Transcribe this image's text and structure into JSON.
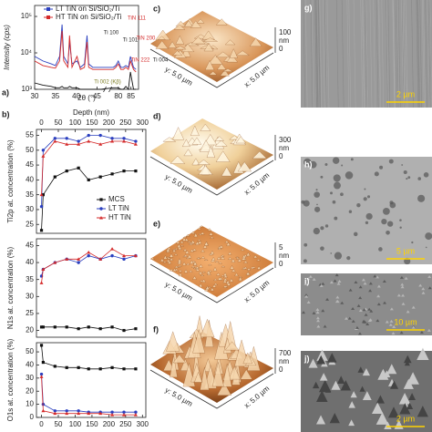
{
  "chart_data": [
    {
      "type": "line",
      "y_label": "Intensity (cps)",
      "x_label": "2θ (°)",
      "log_y": true,
      "x": [
        30,
        32,
        34,
        35,
        36,
        36.6,
        37,
        38,
        38.4,
        39,
        40.2,
        41,
        42,
        42.6,
        43,
        44,
        46,
        78,
        79,
        80,
        81,
        82,
        83,
        84,
        84.8,
        86,
        87
      ],
      "xlim": [
        30,
        88
      ],
      "axis_break": [
        47,
        77
      ],
      "xticks": [
        30,
        35,
        40,
        45,
        80,
        85
      ],
      "ylim": [
        1000,
        200000
      ],
      "yticks": [
        {
          "value": 1000,
          "label": "10³"
        },
        {
          "value": 10000,
          "label": "10⁴"
        },
        {
          "value": 100000,
          "label": "10⁵"
        }
      ],
      "legend": "top",
      "series": [
        {
          "name": "LT TiN on Si/SiO₂/Ti",
          "color": "#2a3fbf",
          "values": [
            8000,
            6000,
            5000,
            4500,
            8000,
            60000,
            8000,
            5000,
            20000,
            5000,
            6000,
            4000,
            5000,
            30000,
            5000,
            4000,
            4000,
            4000,
            4500,
            6000,
            4000,
            4000,
            4500,
            4000,
            8000,
            4000,
            3500
          ]
        },
        {
          "name": "HT TiN on Si/SiO₂/Ti",
          "color": "#d42a2a",
          "values": [
            6000,
            4500,
            4000,
            3800,
            6000,
            40000,
            6000,
            4000,
            30000,
            4000,
            8000,
            3500,
            4000,
            20000,
            4000,
            3500,
            3500,
            3500,
            4000,
            5000,
            3500,
            3500,
            4000,
            3500,
            6000,
            3500,
            3000
          ]
        },
        {
          "color": "#111111",
          "values": [
            1500,
            1300,
            1200,
            1100,
            1100,
            1200,
            1100,
            1100,
            1200,
            1100,
            1100,
            1000,
            1000,
            1000,
            1000,
            1000,
            1000,
            1100,
            1100,
            1100,
            1000,
            1000,
            1200,
            1000,
            3000,
            1000,
            1000
          ]
        }
      ],
      "annotations": [
        "TiN 111",
        "Ti 100",
        "Ti 101",
        "TiN 200",
        "TiN 222",
        "Ti 004",
        "Ti 002 (Kβ)"
      ]
    },
    {
      "type": "line",
      "y_label": "Ti2p at. concentration (%)",
      "x_label": "Depth (nm)",
      "xaxis_position": "top",
      "x": [
        0,
        5,
        40,
        75,
        110,
        140,
        175,
        210,
        245,
        280
      ],
      "xlim": [
        -15,
        310
      ],
      "xticks": [
        0,
        50,
        100,
        150,
        200,
        250,
        300
      ],
      "ylim": [
        22,
        57
      ],
      "yticks": [
        25,
        30,
        35,
        40,
        45,
        50,
        55
      ],
      "legend": "right",
      "series": [
        {
          "name": "MCS",
          "color": "#111111",
          "marker": "square",
          "values": [
            23,
            35,
            41,
            43,
            44,
            40,
            41,
            42,
            43,
            43
          ]
        },
        {
          "name": "LT TiN",
          "color": "#2a3fbf",
          "marker": "circle",
          "values": [
            31,
            50,
            54,
            54,
            53,
            55,
            55,
            54,
            54,
            53
          ]
        },
        {
          "name": "HT TiN",
          "color": "#d42a2a",
          "marker": "triangle",
          "values": [
            35,
            48,
            53,
            52,
            52,
            53,
            52,
            53,
            53,
            52
          ]
        }
      ]
    },
    {
      "type": "line",
      "y_label": "N1s at. concentration (%)",
      "x": [
        0,
        5,
        40,
        75,
        110,
        140,
        175,
        210,
        245,
        280
      ],
      "xlim": [
        -15,
        310
      ],
      "ylim": [
        18,
        47
      ],
      "yticks": [
        20,
        25,
        30,
        35,
        40,
        45
      ],
      "series": [
        {
          "color": "#111111",
          "marker": "square",
          "values": [
            21,
            21,
            21,
            21,
            20.5,
            21,
            20.5,
            21,
            20,
            20.5
          ]
        },
        {
          "color": "#2a3fbf",
          "marker": "circle",
          "values": [
            36,
            38,
            40,
            41,
            40,
            42,
            41,
            42,
            41,
            42
          ]
        },
        {
          "color": "#d42a2a",
          "marker": "triangle",
          "values": [
            34,
            38,
            40,
            41,
            41,
            43,
            41,
            44,
            42,
            42
          ]
        }
      ]
    },
    {
      "type": "line",
      "y_label": "O1s at. concentration (%)",
      "xaxis_position": "bottom",
      "x": [
        0,
        5,
        40,
        75,
        110,
        140,
        175,
        210,
        245,
        280
      ],
      "xlim": [
        -15,
        310
      ],
      "xticks": [
        0,
        50,
        100,
        150,
        200,
        250,
        300
      ],
      "ylim": [
        0,
        57
      ],
      "yticks": [
        0,
        10,
        20,
        30,
        40,
        50
      ],
      "series": [
        {
          "color": "#111111",
          "marker": "square",
          "values": [
            55,
            42,
            39,
            38,
            38,
            37,
            37,
            38,
            37,
            37
          ]
        },
        {
          "color": "#2a3fbf",
          "marker": "circle",
          "values": [
            33,
            10,
            5,
            5,
            5,
            4,
            4,
            4,
            4,
            4
          ]
        },
        {
          "color": "#d42a2a",
          "marker": "triangle",
          "values": [
            31,
            5,
            3,
            3,
            3,
            3,
            3,
            2,
            2,
            2
          ]
        }
      ]
    }
  ],
  "chart_labels": [
    "a)",
    "b)"
  ],
  "afm": [
    {
      "label": "c)",
      "z_top": "100",
      "z_unit": "nm",
      "z_zero": "0",
      "x_axis": "x: 5.0 µm",
      "y_axis": "y: 5.0 µm"
    },
    {
      "label": "d)",
      "z_top": "300",
      "z_unit": "nm",
      "z_zero": "0",
      "x_axis": "x: 5.0 µm",
      "y_axis": "y: 5.0 µm"
    },
    {
      "label": "e)",
      "z_top": "5",
      "z_unit": "nm",
      "z_zero": "0",
      "x_axis": "x: 5.0 µm",
      "y_axis": "y: 5.0 µm"
    },
    {
      "label": "f)",
      "z_top": "700",
      "z_unit": "nm",
      "z_zero": "0",
      "x_axis": "x: 5.0 µm",
      "y_axis": "y: 5.0 µm"
    }
  ],
  "sem": [
    {
      "label": "g)",
      "scale_bar": "2 µm"
    },
    {
      "label": "h)",
      "scale_bar": "5 µm"
    },
    {
      "label": "i)",
      "scale_bar": "10 µm"
    },
    {
      "label": "j)",
      "scale_bar": "2 µm"
    }
  ]
}
